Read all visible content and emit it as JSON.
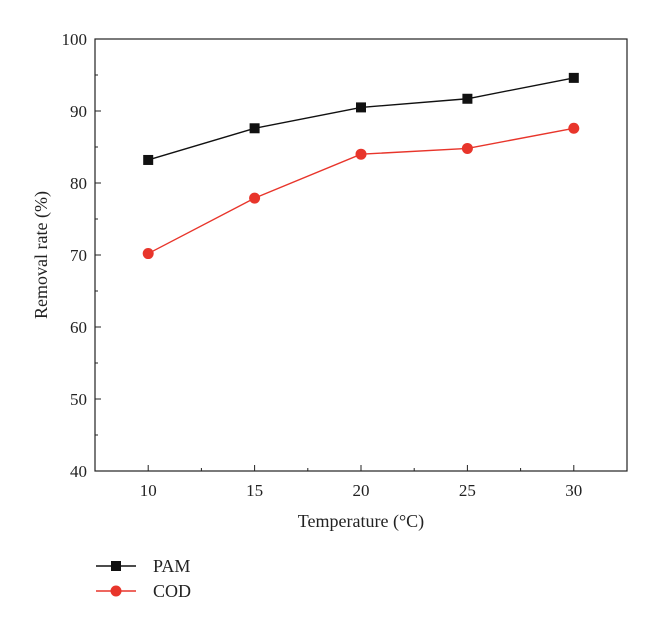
{
  "chart_data": {
    "type": "line",
    "xlabel": "Temperature (°C)",
    "ylabel": "Removal rate (%)",
    "x": [
      10,
      15,
      20,
      25,
      30
    ],
    "xlim": [
      7.5,
      32.5
    ],
    "ylim": [
      40,
      100
    ],
    "xticks": [
      "10",
      "15",
      "20",
      "25",
      "30"
    ],
    "yticks": [
      "40",
      "50",
      "60",
      "70",
      "80",
      "90",
      "100"
    ],
    "grid": false,
    "legend_position": "bottom-left",
    "series": [
      {
        "name": "PAM",
        "values": [
          83.2,
          87.6,
          90.5,
          91.7,
          94.6
        ],
        "color": "#111111",
        "marker": "square"
      },
      {
        "name": "COD",
        "values": [
          70.2,
          77.9,
          84.0,
          84.8,
          87.6
        ],
        "color": "#e8352b",
        "marker": "circle"
      }
    ]
  }
}
